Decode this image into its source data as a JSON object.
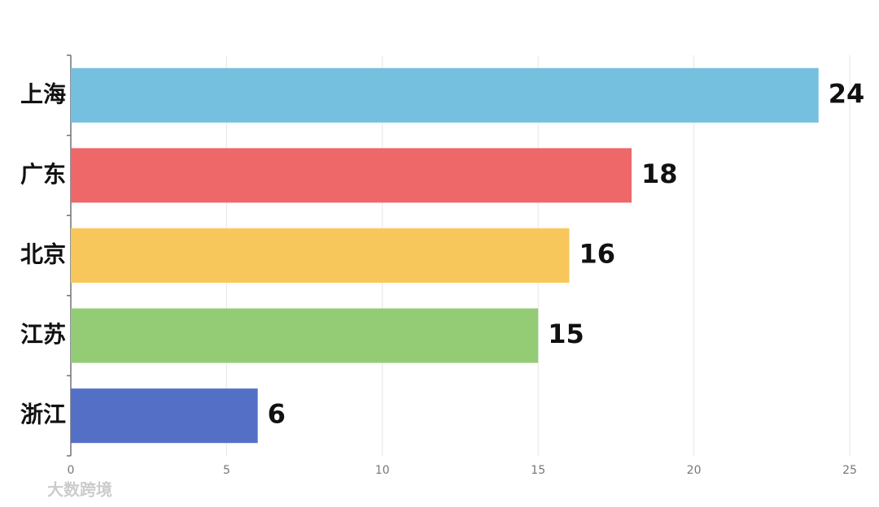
{
  "chart_data": {
    "type": "bar",
    "orientation": "horizontal",
    "categories": [
      "上海",
      "广东",
      "北京",
      "江苏",
      "浙江"
    ],
    "values": [
      24,
      18,
      16,
      15,
      6
    ],
    "colors": [
      "#75bfdf",
      "#ee6769",
      "#f8c75c",
      "#93cc74",
      "#5470c6"
    ],
    "xlim": [
      0,
      25
    ],
    "xticks": [
      0,
      5,
      10,
      15,
      20,
      25
    ],
    "grid": true,
    "watermark": "大数跨境"
  }
}
